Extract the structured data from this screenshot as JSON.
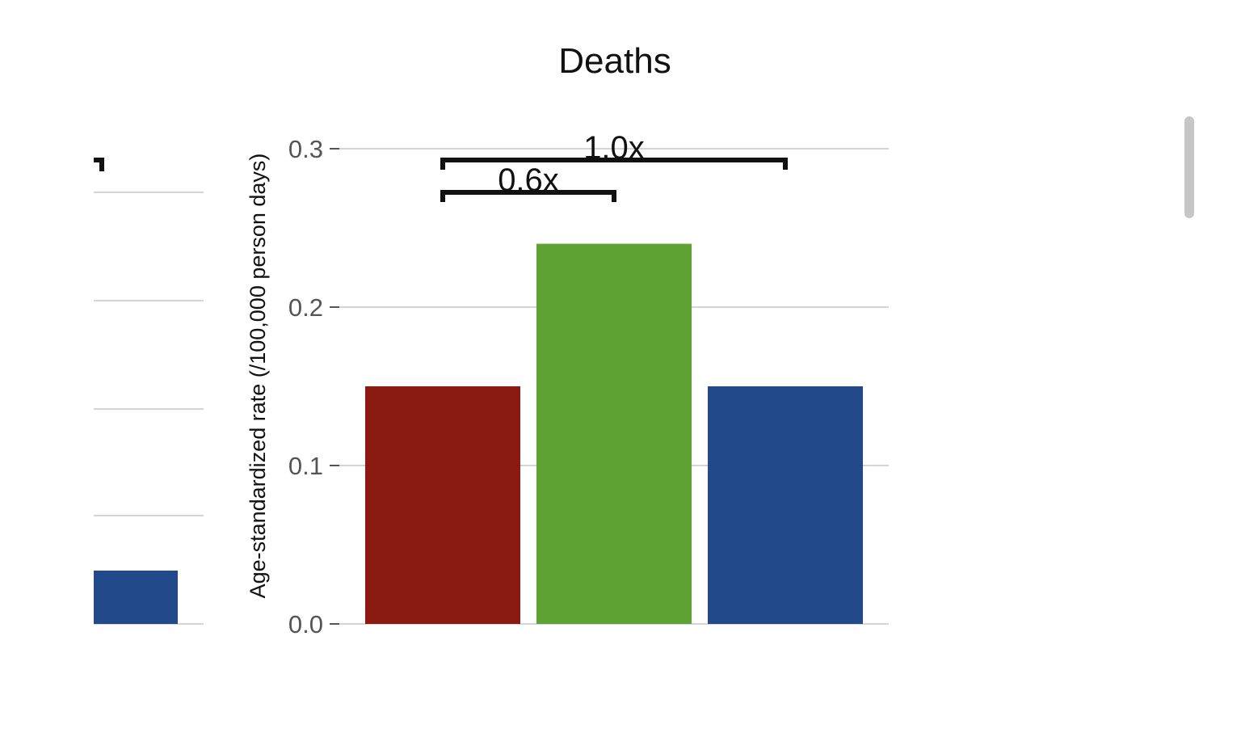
{
  "chart_data": {
    "type": "bar",
    "title": "Deaths",
    "xlabel": "",
    "ylabel": "Age-standardized rate (/100,000 person days)",
    "ylim": [
      0,
      0.3
    ],
    "yticks": [
      "0.0",
      "0.1",
      "0.2",
      "0.3"
    ],
    "ytick_values": [
      0,
      0.1,
      0.2,
      0.3
    ],
    "grid": true,
    "categories": [
      "",
      "",
      ""
    ],
    "values": [
      0.15,
      0.24,
      0.15
    ],
    "colors": [
      "#8b1a10",
      "#5fa334",
      "#224a8a"
    ],
    "annotations": [
      {
        "text": "0.6x",
        "from": 0,
        "to": 1
      },
      {
        "text": "1.0x",
        "from": 0,
        "to": 2
      }
    ]
  },
  "partial_panel": {
    "visible_bar_color": "#224a8a"
  },
  "scrollbar": {
    "color": "#c6c6c6"
  }
}
